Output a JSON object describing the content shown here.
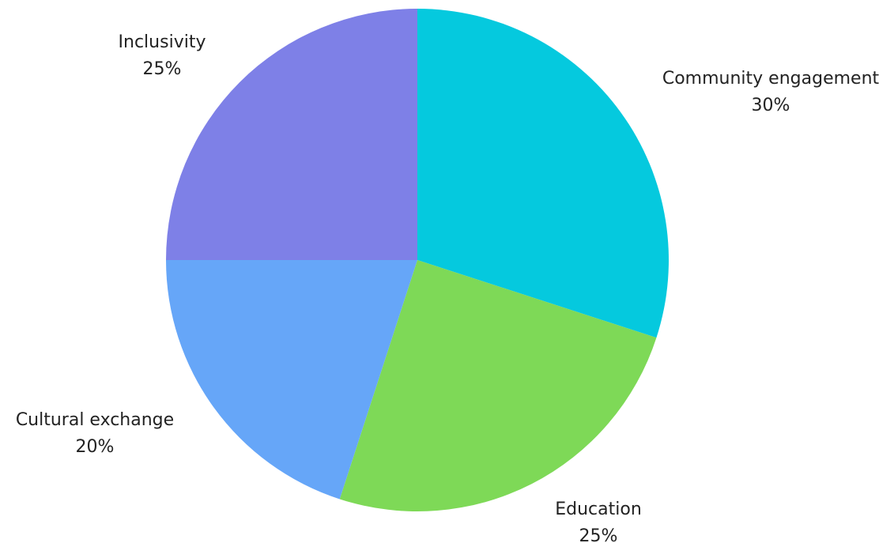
{
  "chart_data": {
    "type": "pie",
    "start_angle_deg": 0,
    "direction": "clockwise",
    "slices": [
      {
        "label": "Community engagement",
        "value": 30,
        "value_label": "30%",
        "color": "#05C9DE"
      },
      {
        "label": "Education",
        "value": 25,
        "value_label": "25%",
        "color": "#7ED957"
      },
      {
        "label": "Cultural exchange",
        "value": 20,
        "value_label": "20%",
        "color": "#66A6F8"
      },
      {
        "label": "Inclusivity",
        "value": 25,
        "value_label": "25%",
        "color": "#7E80E7"
      }
    ]
  }
}
